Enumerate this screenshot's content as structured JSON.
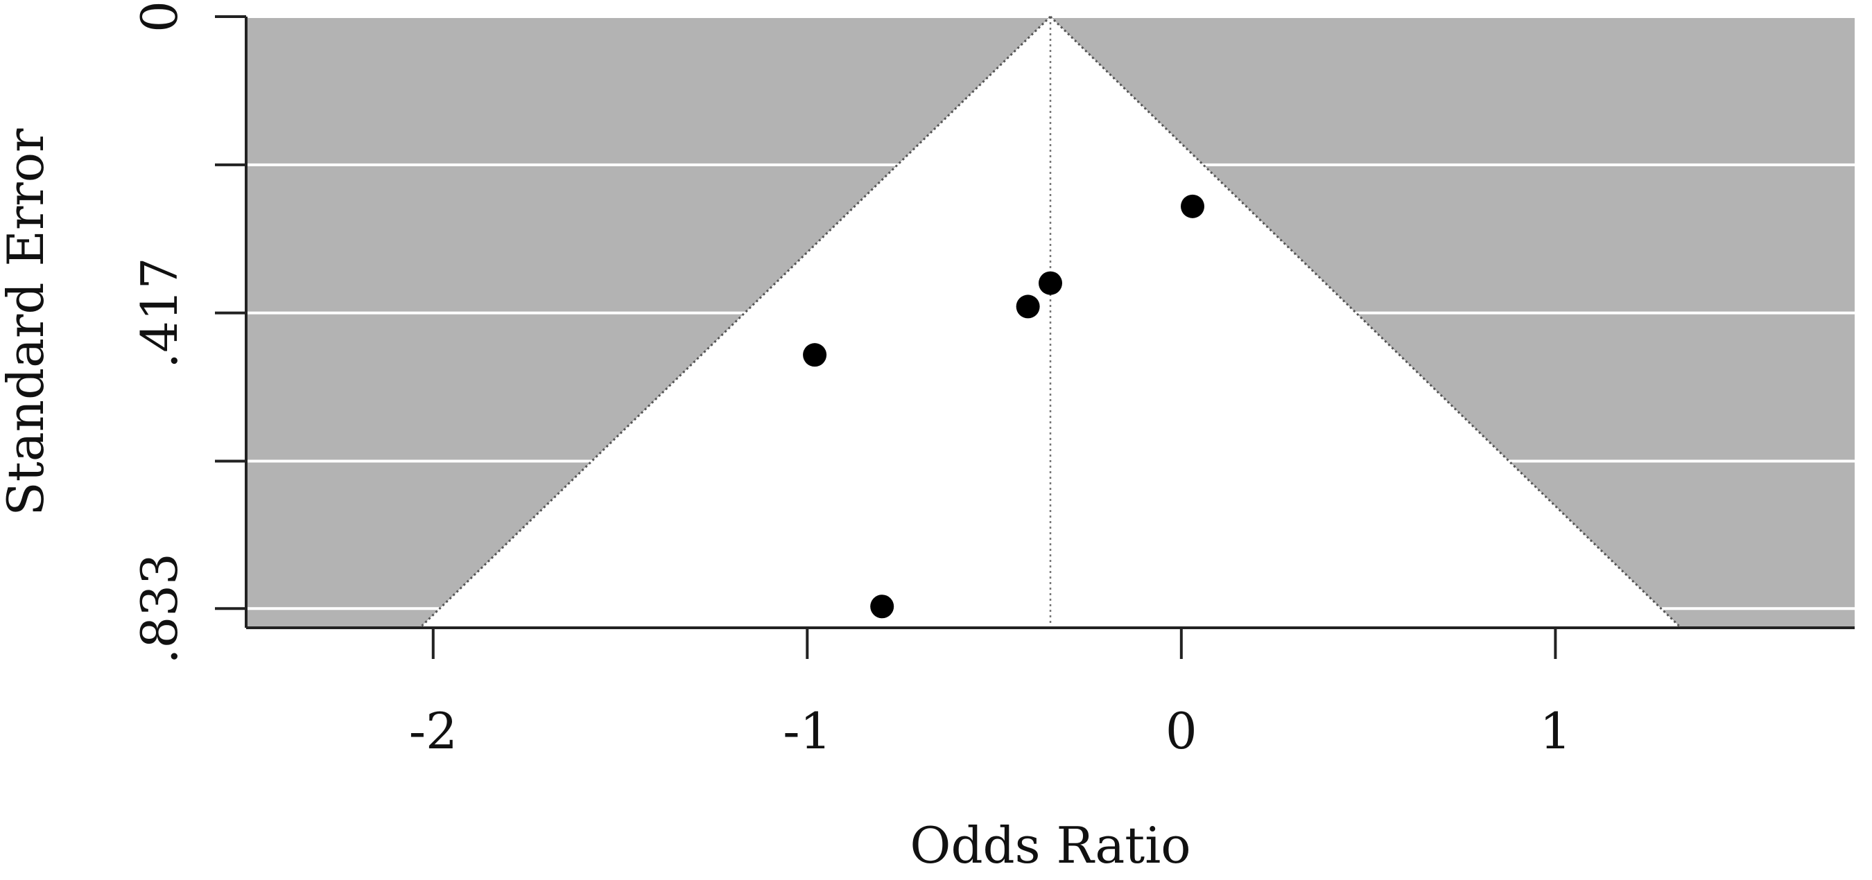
{
  "chart_data": {
    "type": "scatter",
    "title": "",
    "xlabel": "Odds Ratio",
    "ylabel": "Standard Error",
    "xlim": [
      -2.5,
      1.8
    ],
    "ylim": [
      0,
      0.86
    ],
    "y_inverted": true,
    "x_ticks": [
      -2,
      -1,
      0,
      1
    ],
    "x_tick_labels": [
      "-2",
      "-1",
      "0",
      "1"
    ],
    "y_ticks": [
      0,
      0.2085,
      0.417,
      0.6255,
      0.833
    ],
    "y_tick_labels": [
      "0",
      "",
      ".417",
      "",
      ".833"
    ],
    "summary_effect": -0.35,
    "funnel_multiplier": 1.96,
    "points": [
      {
        "x": 0.03,
        "y": 0.267
      },
      {
        "x": -0.35,
        "y": 0.375
      },
      {
        "x": -0.41,
        "y": 0.408
      },
      {
        "x": -0.98,
        "y": 0.476
      },
      {
        "x": -0.8,
        "y": 0.83
      }
    ],
    "grid": true,
    "colors": {
      "panel_background": "#b3b3b3",
      "funnel_fill": "#ffffff",
      "grid_line": "#ffffff",
      "point": "#000000",
      "axis": "#222222",
      "funnel_edge": "#555555"
    }
  }
}
